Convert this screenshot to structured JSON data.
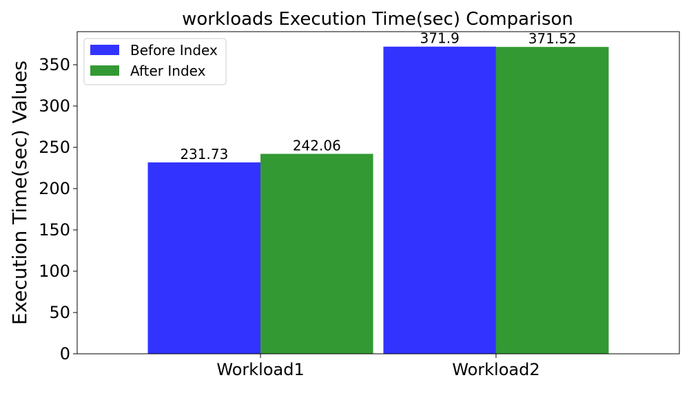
{
  "chart_data": {
    "type": "bar",
    "title": "workloads Execution Time(sec) Comparison",
    "xlabel": "",
    "ylabel": "Execution Time(sec) Values",
    "categories": [
      "Workload1",
      "Workload2"
    ],
    "series": [
      {
        "name": "Before Index",
        "color": "#3333ff",
        "values": [
          231.73,
          371.9
        ],
        "labels": [
          "231.73",
          "371.9"
        ]
      },
      {
        "name": "After Index",
        "color": "#339933",
        "values": [
          242.06,
          371.52
        ],
        "labels": [
          "242.06",
          "371.52"
        ]
      }
    ],
    "ylim": [
      0,
      390
    ],
    "yticks": [
      0,
      50,
      100,
      150,
      200,
      250,
      300,
      350
    ],
    "grid": false,
    "legend_position": "upper-left"
  }
}
